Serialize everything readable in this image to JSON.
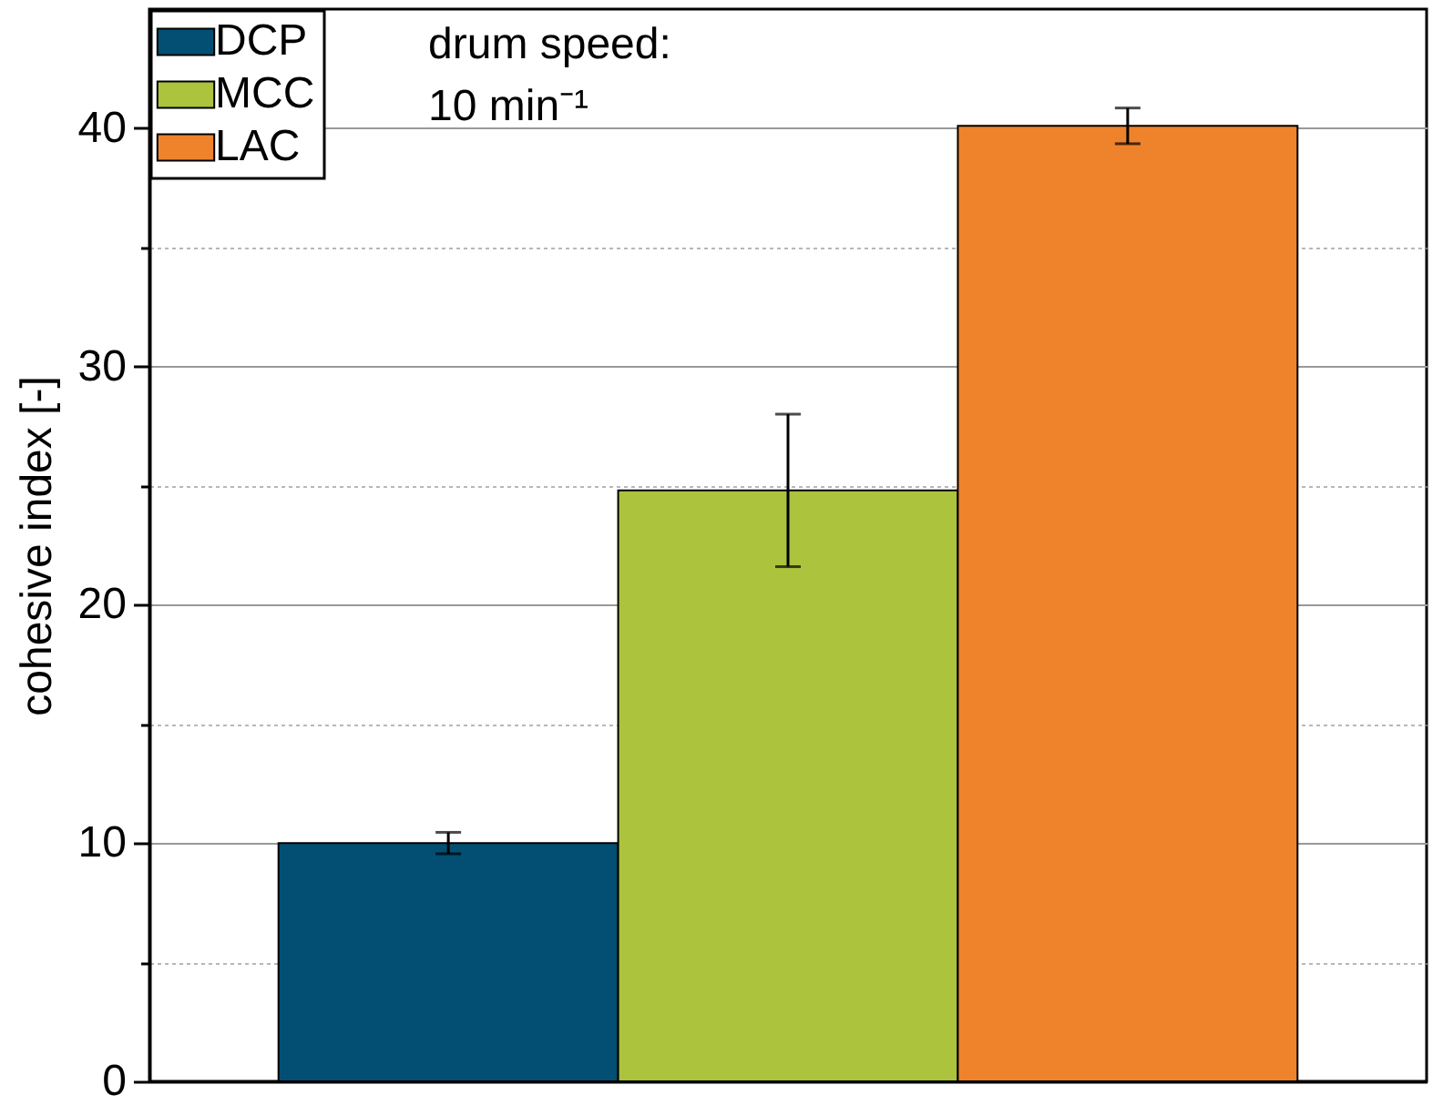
{
  "chart_data": {
    "type": "bar",
    "ylabel": "cohesive index [-]",
    "categories": [
      null,
      null,
      null
    ],
    "series": [
      {
        "name": "DCP",
        "color": "#024f73",
        "values": [
          10.0,
          null,
          null
        ],
        "errors": [
          0.45,
          null,
          null
        ]
      },
      {
        "name": "MCC",
        "color": "#abc33d",
        "values": [
          null,
          24.8,
          null
        ],
        "errors": [
          null,
          3.2,
          null
        ]
      },
      {
        "name": "LAC",
        "color": "#ef832b",
        "values": [
          null,
          null,
          40.1
        ],
        "errors": [
          null,
          null,
          0.75
        ]
      }
    ],
    "ylim": [
      0,
      45
    ],
    "yticks": [
      0,
      {
        "value": 5,
        "label": null
      },
      10,
      {
        "value": 15,
        "label": null
      },
      20,
      {
        "value": 25,
        "label": null
      },
      30,
      {
        "value": 35,
        "label": null
      },
      40
    ],
    "grid": "y",
    "legend": "top left",
    "annotations": [
      "drum speed:\n10 min⁻¹"
    ]
  }
}
